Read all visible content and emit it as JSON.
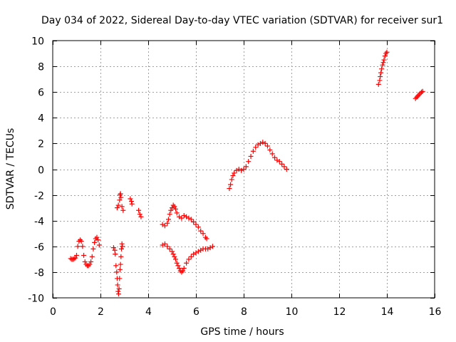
{
  "chart_data": {
    "type": "scatter",
    "title": "Day 034 of 2022, Sidereal Day-to-day VTEC variation (SDTVAR) for receiver sur1",
    "xlabel": "GPS time / hours",
    "ylabel": "SDTVAR / TECUs",
    "xlim": [
      0,
      16
    ],
    "ylim": [
      -10,
      10
    ],
    "xticks": [
      0,
      2,
      4,
      6,
      8,
      10,
      12,
      14,
      16
    ],
    "yticks": [
      -10,
      -8,
      -6,
      -4,
      -2,
      0,
      2,
      4,
      6,
      8,
      10
    ],
    "grid": true,
    "marker": "+",
    "marker_color": "#ff0000",
    "series": [
      {
        "name": "SDTVAR",
        "points": [
          [
            0.75,
            -6.95
          ],
          [
            0.8,
            -7.0
          ],
          [
            0.85,
            -7.0
          ],
          [
            0.9,
            -6.95
          ],
          [
            0.95,
            -6.9
          ],
          [
            1.0,
            -6.7
          ],
          [
            1.05,
            -6.0
          ],
          [
            1.1,
            -5.6
          ],
          [
            1.15,
            -5.5
          ],
          [
            1.2,
            -5.6
          ],
          [
            1.25,
            -6.0
          ],
          [
            1.3,
            -6.7
          ],
          [
            1.35,
            -7.2
          ],
          [
            1.4,
            -7.4
          ],
          [
            1.45,
            -7.5
          ],
          [
            1.5,
            -7.5
          ],
          [
            1.55,
            -7.4
          ],
          [
            1.6,
            -7.2
          ],
          [
            1.65,
            -6.8
          ],
          [
            1.7,
            -6.2
          ],
          [
            1.75,
            -5.7
          ],
          [
            1.8,
            -5.4
          ],
          [
            1.85,
            -5.3
          ],
          [
            1.9,
            -5.5
          ],
          [
            1.95,
            -5.9
          ],
          [
            2.55,
            -6.1
          ],
          [
            2.6,
            -6.3
          ],
          [
            2.62,
            -6.6
          ],
          [
            2.65,
            -7.5
          ],
          [
            2.68,
            -8.0
          ],
          [
            2.7,
            -8.5
          ],
          [
            2.72,
            -9.0
          ],
          [
            2.74,
            -9.5
          ],
          [
            2.76,
            -9.7
          ],
          [
            2.78,
            -9.3
          ],
          [
            2.8,
            -8.5
          ],
          [
            2.82,
            -7.8
          ],
          [
            2.84,
            -7.4
          ],
          [
            2.86,
            -6.8
          ],
          [
            2.88,
            -6.2
          ],
          [
            2.9,
            -5.8
          ],
          [
            2.92,
            -6.0
          ],
          [
            2.7,
            -3.0
          ],
          [
            2.75,
            -2.8
          ],
          [
            2.8,
            -2.4
          ],
          [
            2.82,
            -2.0
          ],
          [
            2.84,
            -1.9
          ],
          [
            2.86,
            -2.2
          ],
          [
            2.9,
            -2.9
          ],
          [
            2.95,
            -3.2
          ],
          [
            3.25,
            -2.3
          ],
          [
            3.3,
            -2.5
          ],
          [
            3.32,
            -2.7
          ],
          [
            3.6,
            -3.2
          ],
          [
            3.65,
            -3.5
          ],
          [
            3.7,
            -3.7
          ],
          [
            4.6,
            -4.3
          ],
          [
            4.7,
            -4.4
          ],
          [
            4.8,
            -4.2
          ],
          [
            4.85,
            -3.9
          ],
          [
            4.9,
            -3.5
          ],
          [
            4.95,
            -3.2
          ],
          [
            5.0,
            -3.0
          ],
          [
            5.05,
            -2.8
          ],
          [
            5.1,
            -2.9
          ],
          [
            5.15,
            -3.1
          ],
          [
            5.2,
            -3.4
          ],
          [
            5.3,
            -3.7
          ],
          [
            5.4,
            -3.8
          ],
          [
            5.5,
            -3.6
          ],
          [
            5.6,
            -3.7
          ],
          [
            5.7,
            -3.8
          ],
          [
            5.8,
            -3.9
          ],
          [
            5.9,
            -4.1
          ],
          [
            6.0,
            -4.3
          ],
          [
            6.1,
            -4.5
          ],
          [
            6.2,
            -4.8
          ],
          [
            6.3,
            -5.0
          ],
          [
            6.4,
            -5.3
          ],
          [
            6.45,
            -5.4
          ],
          [
            4.6,
            -5.9
          ],
          [
            4.7,
            -5.8
          ],
          [
            4.8,
            -6.0
          ],
          [
            4.9,
            -6.2
          ],
          [
            5.0,
            -6.4
          ],
          [
            5.05,
            -6.6
          ],
          [
            5.1,
            -6.8
          ],
          [
            5.15,
            -7.0
          ],
          [
            5.2,
            -7.3
          ],
          [
            5.25,
            -7.5
          ],
          [
            5.3,
            -7.7
          ],
          [
            5.35,
            -7.9
          ],
          [
            5.4,
            -8.0
          ],
          [
            5.45,
            -7.9
          ],
          [
            5.5,
            -7.7
          ],
          [
            5.6,
            -7.3
          ],
          [
            5.7,
            -7.0
          ],
          [
            5.8,
            -6.8
          ],
          [
            5.9,
            -6.6
          ],
          [
            6.0,
            -6.5
          ],
          [
            6.1,
            -6.4
          ],
          [
            6.2,
            -6.3
          ],
          [
            6.3,
            -6.2
          ],
          [
            6.4,
            -6.2
          ],
          [
            6.5,
            -6.2
          ],
          [
            6.6,
            -6.1
          ],
          [
            6.7,
            -6.0
          ],
          [
            7.4,
            -1.5
          ],
          [
            7.45,
            -1.2
          ],
          [
            7.5,
            -0.8
          ],
          [
            7.55,
            -0.5
          ],
          [
            7.6,
            -0.3
          ],
          [
            7.7,
            -0.1
          ],
          [
            7.8,
            0.0
          ],
          [
            7.9,
            -0.1
          ],
          [
            8.0,
            0.0
          ],
          [
            8.1,
            0.2
          ],
          [
            8.2,
            0.6
          ],
          [
            8.3,
            1.0
          ],
          [
            8.4,
            1.4
          ],
          [
            8.5,
            1.7
          ],
          [
            8.6,
            1.9
          ],
          [
            8.7,
            2.0
          ],
          [
            8.8,
            2.1
          ],
          [
            8.9,
            2.0
          ],
          [
            9.0,
            1.8
          ],
          [
            9.1,
            1.5
          ],
          [
            9.2,
            1.2
          ],
          [
            9.3,
            0.9
          ],
          [
            9.4,
            0.7
          ],
          [
            9.5,
            0.6
          ],
          [
            9.6,
            0.4
          ],
          [
            9.7,
            0.2
          ],
          [
            9.8,
            0.0
          ],
          [
            13.65,
            6.6
          ],
          [
            13.7,
            6.9
          ],
          [
            13.72,
            7.2
          ],
          [
            13.75,
            7.5
          ],
          [
            13.78,
            7.8
          ],
          [
            13.82,
            8.1
          ],
          [
            13.85,
            8.3
          ],
          [
            13.88,
            8.5
          ],
          [
            13.92,
            8.8
          ],
          [
            13.96,
            9.0
          ],
          [
            14.0,
            9.1
          ],
          [
            15.2,
            5.5
          ],
          [
            15.25,
            5.6
          ],
          [
            15.3,
            5.7
          ],
          [
            15.35,
            5.8
          ],
          [
            15.4,
            5.9
          ],
          [
            15.45,
            6.0
          ],
          [
            15.5,
            6.05
          ]
        ]
      }
    ]
  }
}
